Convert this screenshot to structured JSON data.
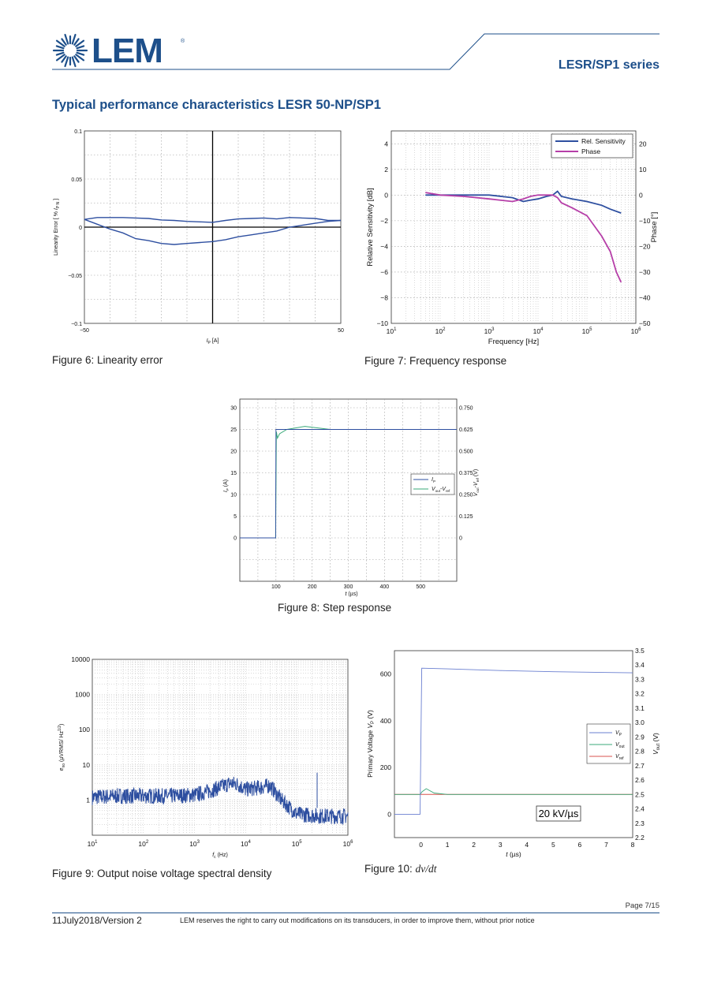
{
  "header": {
    "brand": "LEM",
    "series": "LESR/SP1 series",
    "section_title": "Typical performance characteristics LESR 50-NP/SP1"
  },
  "colors": {
    "brand_blue": "#1d4f8a",
    "series_blue": "#2e4fa0",
    "series_magenta": "#b63fa8",
    "series_green": "#3aaa7a",
    "series_red": "#d9534f"
  },
  "figures": {
    "fig6": {
      "caption": "Figure 6: Linearity error",
      "xlabel": "I_P [A]",
      "ylabel": "Linearity Error [ % I_P N ]"
    },
    "fig7": {
      "caption": "Figure 7: Frequency response",
      "xlabel": "Frequency [Hz]",
      "ylabel_left": "Relative Sensitivity [dB]",
      "ylabel_right": "Phase [°]"
    },
    "fig8": {
      "caption": "Figure 8: Step response",
      "xlabel": "t (µs)",
      "ylabel_left": "I_P (A)",
      "ylabel_right": "V_out-V_ref (V)"
    },
    "fig9": {
      "caption": "Figure 9: Output noise voltage spectral density",
      "xlabel": "f_c (Hz)",
      "ylabel": "e_no (µVRMS/Hz^1/2)"
    },
    "fig10": {
      "caption_prefix": "Figure 10: ",
      "caption_math": "dv/dt",
      "annotation": "20 kV/µs",
      "xlabel": "t (µs)",
      "ylabel_left": "Primary Voltage V_P (V)",
      "ylabel_right": "V_out (V)"
    }
  },
  "chart_data": [
    {
      "type": "line",
      "id": "fig6",
      "xlim": [
        -50,
        50
      ],
      "ylim": [
        -0.1,
        0.1
      ],
      "xticks": [
        "-50",
        "50"
      ],
      "yticks": [
        "0.1",
        "0.05",
        "0",
        "-0.05",
        "-0.1"
      ],
      "series": [
        {
          "x": [
            -50,
            -45,
            -40,
            -35,
            -30,
            -25,
            -20,
            -15,
            -10,
            -5,
            0,
            5,
            10,
            15,
            20,
            25,
            30,
            35,
            40,
            45,
            50
          ],
          "values": [
            0.008,
            0.01,
            0.01,
            0.01,
            0.0095,
            0.009,
            0.0075,
            0.007,
            0.006,
            0.0055,
            0.005,
            0.007,
            0.0085,
            0.009,
            0.0095,
            0.0085,
            0.01,
            0.0095,
            0.009,
            0.007,
            0.007
          ]
        },
        {
          "x": [
            -50,
            -45,
            -40,
            -35,
            -30,
            -25,
            -20,
            -15,
            -10,
            -5,
            0,
            5,
            10,
            15,
            20,
            25,
            30,
            35,
            40,
            45,
            50
          ],
          "values": [
            0.008,
            0.003,
            -0.002,
            -0.006,
            -0.012,
            -0.014,
            -0.017,
            -0.018,
            -0.017,
            -0.016,
            -0.015,
            -0.013,
            -0.01,
            -0.008,
            -0.006,
            -0.004,
            0.0,
            0.002,
            0.004,
            0.006,
            0.007
          ]
        }
      ]
    },
    {
      "type": "line",
      "id": "fig7",
      "xscale": "log",
      "xlim": [
        10,
        1000000
      ],
      "ylim_left": [
        -10,
        5
      ],
      "ylim_right": [
        -50,
        25
      ],
      "xticks": [
        "10^1",
        "10^2",
        "10^3",
        "10^4",
        "10^5",
        "10^6"
      ],
      "yticks_left": [
        "4",
        "2",
        "0",
        "−2",
        "−4",
        "−6",
        "−8",
        "−10"
      ],
      "yticks_right": [
        "20",
        "10",
        "0",
        "−10",
        "−20",
        "−30",
        "−40",
        "−50"
      ],
      "legend": [
        "Rel. Sensitivity",
        "Phase"
      ],
      "legend_position": "top-right",
      "series": [
        {
          "name": "Rel. Sensitivity",
          "x": [
            50,
            100,
            300,
            1000,
            3000,
            5000,
            7000,
            10000,
            15000,
            20000,
            25000,
            30000,
            50000,
            100000,
            200000,
            300000,
            500000
          ],
          "values": [
            0.0,
            0.0,
            0.0,
            0.0,
            -0.2,
            -0.5,
            -0.4,
            -0.3,
            -0.1,
            0.0,
            0.3,
            -0.1,
            -0.3,
            -0.5,
            -0.8,
            -1.1,
            -1.4
          ]
        },
        {
          "name": "Phase",
          "x": [
            50,
            100,
            300,
            1000,
            3000,
            5000,
            7000,
            10000,
            15000,
            20000,
            25000,
            30000,
            50000,
            100000,
            200000,
            300000,
            400000,
            500000
          ],
          "values": [
            1,
            0,
            -0.5,
            -1.5,
            -2.5,
            -1.5,
            -0.5,
            0,
            0,
            0,
            -1,
            -3,
            -5,
            -8,
            -16,
            -22,
            -30,
            -34
          ]
        }
      ]
    },
    {
      "type": "line",
      "id": "fig8",
      "xlim": [
        0,
        600
      ],
      "ylim": [
        -10,
        32
      ],
      "ylim_right": [
        -0.25,
        0.8
      ],
      "xticks": [
        "100",
        "200",
        "300",
        "400",
        "500"
      ],
      "yticks_left": [
        "30",
        "25",
        "20",
        "15",
        "10",
        "5",
        "0"
      ],
      "yticks_right": [
        "0.750",
        "0.625",
        "0.500",
        "0.375",
        "0.250",
        "0.125",
        "0"
      ],
      "legend": [
        "I_P",
        "V_out-V_ref"
      ],
      "legend_position": "center-right",
      "series": [
        {
          "name": "I_P",
          "x": [
            0,
            99,
            100,
            103,
            600
          ],
          "values": [
            0,
            0,
            25,
            25,
            25
          ]
        },
        {
          "name": "V_out-V_ref",
          "x": [
            0,
            99,
            101,
            104,
            110,
            130,
            180,
            250,
            600
          ],
          "values": [
            0,
            0,
            24.5,
            23,
            24,
            25,
            25.7,
            25,
            25
          ]
        }
      ]
    },
    {
      "type": "line",
      "id": "fig9",
      "xscale": "log",
      "yscale": "log",
      "xlim": [
        10,
        1000000
      ],
      "ylim": [
        0.1,
        10000
      ],
      "xticks": [
        "10^1",
        "10^2",
        "10^3",
        "10^4",
        "10^5",
        "10^6"
      ],
      "yticks": [
        "10000",
        "1000",
        "100",
        "10",
        "1"
      ],
      "series": [
        {
          "x": [
            10,
            30,
            100,
            300,
            1000,
            2000,
            5000,
            7000,
            10000,
            20000,
            30000,
            50000,
            100000,
            300000,
            1000000
          ],
          "values": [
            1.2,
            1.3,
            1.3,
            1.3,
            1.4,
            1.8,
            3.0,
            2.8,
            2.0,
            2.3,
            2.6,
            1.0,
            0.4,
            0.35,
            0.35
          ]
        }
      ]
    },
    {
      "type": "line",
      "id": "fig10",
      "xlim": [
        -1,
        8
      ],
      "ylim": [
        -100,
        700
      ],
      "ylim_right": [
        2.2,
        3.5
      ],
      "xticks": [
        "0",
        "1",
        "2",
        "3",
        "4",
        "5",
        "6",
        "7",
        "8"
      ],
      "yticks_left": [
        "600",
        "400",
        "200",
        "0"
      ],
      "yticks_right": [
        "3.5",
        "3.4",
        "3.3",
        "3.2",
        "3.1",
        "3.0",
        "2.9",
        "2.8",
        "2.7",
        "2.6",
        "2.5",
        "2.4",
        "2.3",
        "2.2"
      ],
      "legend": [
        "V_P",
        "V_out",
        "V_ref"
      ],
      "legend_position": "center-right",
      "series": [
        {
          "name": "V_P",
          "x": [
            -1,
            -0.03,
            0.03,
            1,
            3,
            5,
            8
          ],
          "values": [
            0,
            0,
            625,
            622,
            615,
            610,
            605
          ]
        },
        {
          "name": "V_out",
          "x": [
            -1,
            -0.03,
            0.05,
            0.2,
            0.5,
            1,
            8
          ],
          "values": [
            2.5,
            2.5,
            2.52,
            2.54,
            2.51,
            2.5,
            2.5
          ]
        },
        {
          "name": "V_ref",
          "x": [
            -1,
            8
          ],
          "values": [
            2.5,
            2.5
          ]
        }
      ]
    }
  ],
  "footer": {
    "page": "Page 7/15",
    "date": "11July2018/Version 2",
    "note": "LEM reserves the right to carry out modifications on its transducers, in order to improve them, without prior notice"
  }
}
